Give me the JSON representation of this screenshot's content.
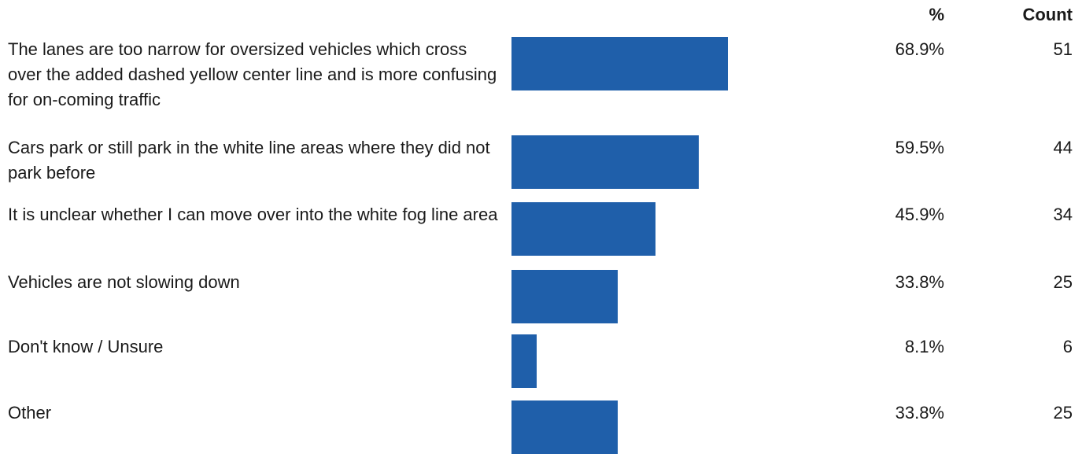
{
  "chart_data": {
    "type": "bar",
    "orientation": "horizontal",
    "headers": {
      "percent": "%",
      "count": "Count"
    },
    "bar_color": "#1f5faa",
    "xlim": [
      0,
      100
    ],
    "categories": [
      "The lanes are too narrow for oversized vehicles which cross over the added dashed yellow center line and is more confusing for on-coming traffic",
      "Cars park or still park in the white line areas where they did not park before",
      "It is unclear whether I can move over into the white fog line area",
      "Vehicles are not slowing down",
      "Don't know / Unsure",
      "Other"
    ],
    "values": [
      68.9,
      59.5,
      45.9,
      33.8,
      8.1,
      33.8
    ],
    "percent_labels": [
      "68.9%",
      "59.5%",
      "45.9%",
      "33.8%",
      "8.1%",
      "33.8%"
    ],
    "counts": [
      "51",
      "44",
      "34",
      "25",
      "6",
      "25"
    ]
  }
}
